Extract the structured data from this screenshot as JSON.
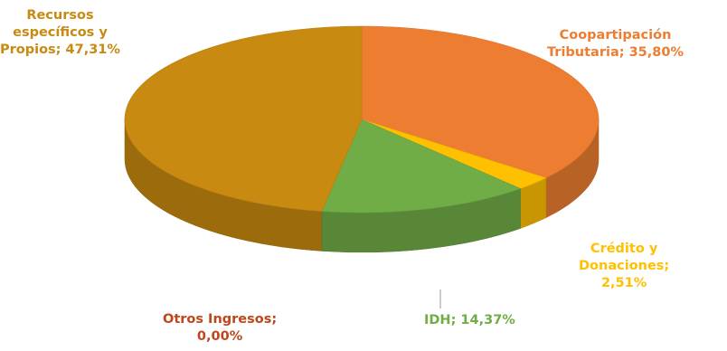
{
  "chart_data": {
    "type": "pie",
    "style": "3d",
    "categories": [
      "Coopartipación Tributaria",
      "Crédito y Donaciones",
      "IDH",
      "Otros Ingresos",
      "Recursos específicos y Propios"
    ],
    "values": [
      35.8,
      2.51,
      14.37,
      0.0,
      47.31
    ],
    "colors": [
      "#ed7d31",
      "#ffc000",
      "#70ad47",
      "#5b9bd5",
      "#c88a10"
    ],
    "labels": [
      {
        "lines": [
          "Coopartipación",
          "Tributaria; 35,80%"
        ],
        "color": "#ed7d31"
      },
      {
        "lines": [
          "Crédito y",
          "Donaciones;",
          "2,51%"
        ],
        "color": "#ffc000"
      },
      {
        "lines": [
          "IDH; 14,37%"
        ],
        "color": "#70ad47"
      },
      {
        "lines": [
          "Otros Ingresos;",
          "0,00%"
        ],
        "color": "#c0461c"
      },
      {
        "lines": [
          "Recursos",
          "específicos y",
          "Propios; 47,31%"
        ],
        "color": "#c88a10"
      }
    ]
  }
}
